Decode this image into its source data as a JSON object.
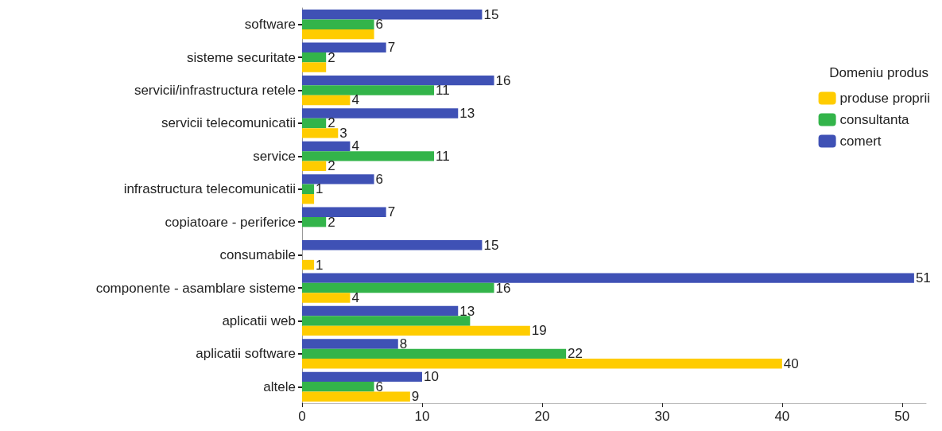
{
  "chart_data": {
    "type": "bar",
    "orientation": "horizontal",
    "legend_title": "Domeniu produs",
    "legend": "right",
    "categories": [
      "software",
      "sisteme securitate",
      "servicii/infrastructura retele",
      "servicii telecomunicatii",
      "service",
      "infrastructura telecomunicatii",
      "copiatoare - periferice",
      "consumabile",
      "componente - asamblare sisteme",
      "aplicatii web",
      "aplicatii software",
      "altele"
    ],
    "series": [
      {
        "name": "produse proprii",
        "color": "#ffcc00",
        "values": [
          6,
          2,
          4,
          3,
          2,
          1,
          null,
          1,
          4,
          19,
          40,
          9
        ],
        "value_labels": [
          null,
          null,
          "4",
          "3",
          "2",
          null,
          null,
          "1",
          "4",
          "19",
          "40",
          "9"
        ]
      },
      {
        "name": "consultanta",
        "color": "#33b44a",
        "values": [
          6,
          2,
          11,
          2,
          11,
          1,
          2,
          null,
          16,
          14,
          22,
          6
        ],
        "value_labels": [
          "6",
          "2",
          "11",
          "2",
          "11",
          "1",
          "2",
          null,
          "16",
          null,
          "22",
          "6"
        ]
      },
      {
        "name": "comert",
        "color": "#3f51b5",
        "values": [
          15,
          7,
          16,
          13,
          4,
          6,
          7,
          15,
          51,
          13,
          8,
          10
        ],
        "value_labels": [
          "15",
          "7",
          "16",
          "13",
          "4",
          "6",
          "7",
          "15",
          "51",
          "13",
          "8",
          "10"
        ]
      }
    ],
    "xlim": [
      0,
      52
    ],
    "xticks": [
      0,
      10,
      20,
      30,
      40,
      50
    ],
    "grid": false
  }
}
